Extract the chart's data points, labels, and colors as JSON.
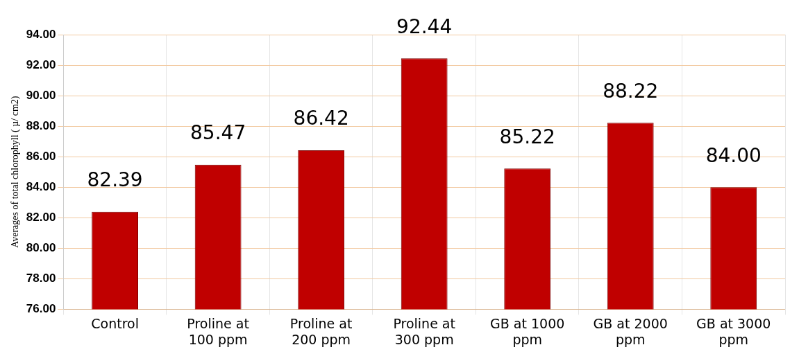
{
  "chart_data": {
    "type": "bar",
    "categories": [
      "Control",
      "Proline at 100 ppm",
      "Proline at 200 ppm",
      "Proline at 300 ppm",
      "GB at 1000 ppm",
      "GB at 2000 ppm",
      "GB at 3000 ppm"
    ],
    "values": [
      82.39,
      85.47,
      86.42,
      92.44,
      85.22,
      88.22,
      84.0
    ],
    "color": "#c00000",
    "ylabel": "Averages of total chlorophyll ( µ/ cm2)",
    "ylim": [
      76,
      94
    ],
    "yticks": [
      {
        "value": 76,
        "label": "76.00"
      },
      {
        "value": 78,
        "label": "78.00"
      },
      {
        "value": 80,
        "label": "80.00"
      },
      {
        "value": 82,
        "label": "82.00"
      },
      {
        "value": 84,
        "label": "84.00"
      },
      {
        "value": 86,
        "label": "86.00"
      },
      {
        "value": 88,
        "label": "88.00"
      },
      {
        "value": 90,
        "label": "90.00"
      },
      {
        "value": 92,
        "label": "92.00"
      },
      {
        "value": 94,
        "label": "94.00"
      }
    ],
    "grid": true,
    "value_labels": [
      "82.39",
      "85.47",
      "86.42",
      "92.44",
      "85.22",
      "88.22",
      "84.00"
    ]
  }
}
